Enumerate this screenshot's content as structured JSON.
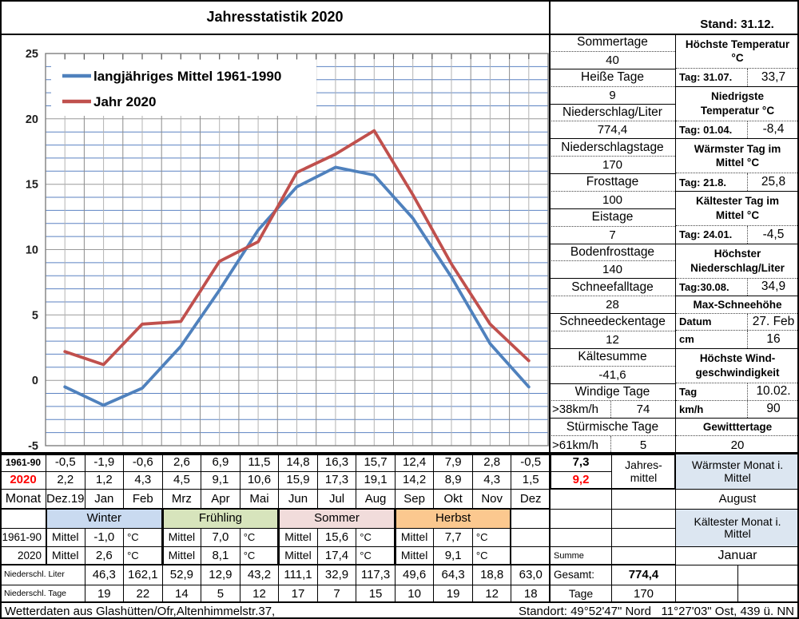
{
  "title": "Jahresstatistik 2020",
  "stand": "Stand: 31.12.",
  "colors": {
    "series_1961": "#4f81bd",
    "series_2020": "#c0504d",
    "grid_blue": "#5b82c2",
    "grid_gray": "#999999",
    "grid_vert": "#b3b3b3",
    "grid_vert_major": "#8c8c8c",
    "plot_border": "#7f7f7f",
    "winter": "#c9daf0",
    "fruehling": "#d7e4bc",
    "sommer": "#f1dcdb",
    "herbst": "#fbc88f",
    "info_blue": "#dce6f1",
    "red_text": "#ff0000"
  },
  "chart_data": {
    "type": "line",
    "categories": [
      "Dez.19",
      "Jan",
      "Feb",
      "Mrz",
      "Apr",
      "Mai",
      "Jun",
      "Jul",
      "Aug",
      "Sep",
      "Okt",
      "Nov",
      "Dez"
    ],
    "series": [
      {
        "name": "langjähriges Mittel 1961-1990",
        "color_key": "series_1961",
        "values": [
          -0.5,
          -1.9,
          -0.6,
          2.6,
          6.9,
          11.5,
          14.8,
          16.3,
          15.7,
          12.4,
          7.9,
          2.8,
          -0.5
        ]
      },
      {
        "name": "Jahr 2020",
        "color_key": "series_2020",
        "values": [
          2.2,
          1.2,
          4.3,
          4.5,
          9.1,
          10.6,
          15.9,
          17.3,
          19.1,
          14.2,
          8.9,
          4.3,
          1.5
        ]
      }
    ],
    "ylim": [
      -5,
      25
    ],
    "ytick_step": 5,
    "grid": "horizontal every 1 degree (blue, gray at multiples of 5), vertical every half month (gray)",
    "legend_position": "top-left"
  },
  "stats": [
    {
      "label": "Sommertage",
      "value": "40"
    },
    {
      "label": "Heiße Tage",
      "value": "9"
    },
    {
      "label": "Niederschlag/Liter",
      "value": "774,4"
    },
    {
      "label": "Niederschlagstage",
      "value": "170"
    },
    {
      "label": "Frosttage",
      "value": "100"
    },
    {
      "label": "Eistage",
      "value": "7"
    },
    {
      "label": "Bodenfrosttage",
      "value": "140"
    },
    {
      "label": "Schneefalltage",
      "value": "28"
    },
    {
      "label": "Schneedeckentage",
      "value": "12"
    },
    {
      "label": "Kältesumme",
      "value": "-41,6"
    },
    {
      "label": "Windige Tage",
      "sub": ">38km/h",
      "value": "74"
    },
    {
      "label": "Stürmische Tage",
      "sub": ">61km/h",
      "value": "5"
    }
  ],
  "details": [
    {
      "header": [
        "Höchste Temperatur",
        "°C"
      ],
      "rows": [
        {
          "l": "Tag: 31.07.",
          "r": "33,7"
        }
      ]
    },
    {
      "header": [
        "Niedrigste",
        "Temperatur °C"
      ],
      "rows": [
        {
          "l": "Tag: 01.04.",
          "r": "-8,4"
        }
      ]
    },
    {
      "header": [
        "Wärmster Tag im",
        "Mittel °C"
      ],
      "rows": [
        {
          "l": "Tag: 21.8.",
          "r": "25,8"
        }
      ]
    },
    {
      "header": [
        "Kältester Tag im",
        "Mittel °C"
      ],
      "rows": [
        {
          "l": "Tag: 24.01.",
          "r": "-4,5"
        }
      ]
    },
    {
      "header": [
        "Höchster",
        "Niederschlag/Liter"
      ],
      "rows": [
        {
          "l": "Tag:30.08.",
          "r": "34,9"
        }
      ]
    },
    {
      "header": [
        "Max-Schneehöhe"
      ],
      "rows": [
        {
          "l": "Datum",
          "r": "27. Feb"
        },
        {
          "l": "cm",
          "r": "16"
        }
      ]
    },
    {
      "header": [
        "Höchste Wind-",
        "geschwindigkeit"
      ],
      "rows": [
        {
          "l": "Tag",
          "r": "10.02."
        },
        {
          "l": "km/h",
          "r": "90"
        }
      ]
    },
    {
      "header": [
        "Gewitttertage"
      ],
      "rows": [
        {
          "c": "20"
        }
      ]
    }
  ],
  "monthly": {
    "label_1961": "1961-90",
    "label_2020": "2020",
    "label_monat": "Monat",
    "temps_1961": [
      "-0,5",
      "-1,9",
      "-0,6",
      "2,6",
      "6,9",
      "11,5",
      "14,8",
      "16,3",
      "15,7",
      "12,4",
      "7,9",
      "2,8",
      "-0,5"
    ],
    "temps_2020": [
      "2,2",
      "1,2",
      "4,3",
      "4,5",
      "9,1",
      "10,6",
      "15,9",
      "17,3",
      "19,1",
      "14,2",
      "8,9",
      "4,3",
      "1,5"
    ],
    "months": [
      "Dez.19",
      "Jan",
      "Feb",
      "Mrz",
      "Apr",
      "Mai",
      "Jun",
      "Jul",
      "Aug",
      "Sep",
      "Okt",
      "Nov",
      "Dez"
    ],
    "annual_1961": "7,3",
    "annual_2020": "9,2",
    "annual_label": [
      "Jahres-",
      "mittel"
    ]
  },
  "seasons": {
    "names": [
      "Winter",
      "Frühling",
      "Sommer",
      "Herbst"
    ],
    "color_keys": [
      "winter",
      "fruehling",
      "sommer",
      "herbst"
    ],
    "mittel_label": "Mittel",
    "unit": "°C",
    "mittel_1961": [
      "-1,0",
      "7,0",
      "15,6",
      "7,7"
    ],
    "mittel_2020": [
      "2,6",
      "8,1",
      "17,4",
      "9,1"
    ]
  },
  "precip": {
    "liter_label": "Niederschl. Liter",
    "liter": [
      "46,3",
      "162,1",
      "52,9",
      "12,9",
      "43,2",
      "111,1",
      "32,9",
      "117,3",
      "49,6",
      "64,3",
      "18,8",
      "63,0"
    ],
    "tage_label": "Niederschl. Tage",
    "tage": [
      "19",
      "22",
      "14",
      "5",
      "12",
      "17",
      "7",
      "15",
      "10",
      "19",
      "12",
      "18"
    ],
    "summe_label": "Summe",
    "gesamt_label": "Gesamt:",
    "gesamt": "774,4",
    "tage_total_label": "Tage",
    "tage_total": "170"
  },
  "right_bottom": {
    "warmest_label": "Wärmster Monat i. Mittel",
    "warmest": "August",
    "coldest_label": "Kältester Monat i. Mittel",
    "coldest": "Januar"
  },
  "footer": {
    "left": "Wetterdaten aus Glashütten/Ofr,Altenhimmelstr.37,",
    "right": "Standort: 49°52'47\" Nord   11°27'03\" Ost, 439 ü. NN"
  }
}
